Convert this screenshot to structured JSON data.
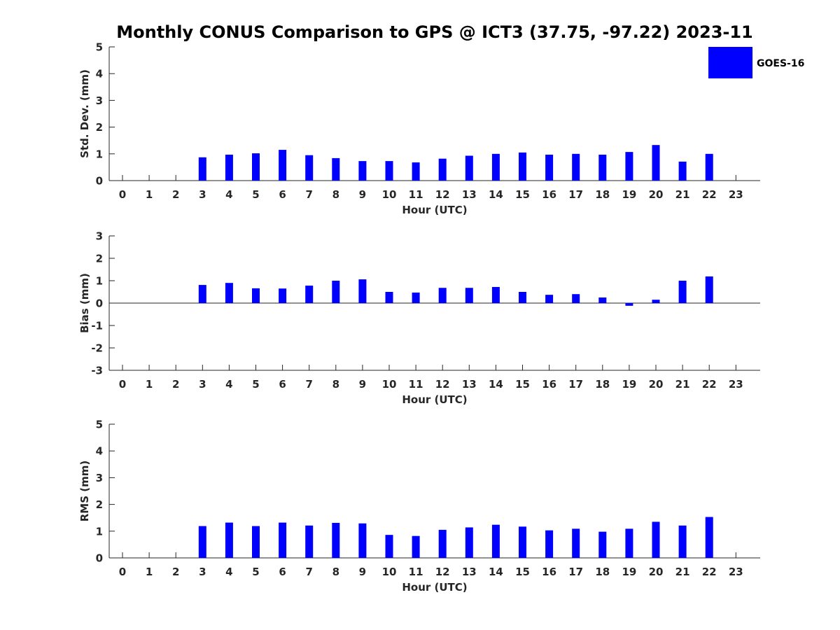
{
  "title": "Monthly CONUS Comparison to GPS @ ICT3 (37.75, -97.22) 2023-11",
  "legend": {
    "label": "GOES-16",
    "color": "#0000ff"
  },
  "chart_data": [
    {
      "type": "bar",
      "ylabel": "Std. Dev. (mm)",
      "xlabel": "Hour (UTC)",
      "ylim": [
        0,
        5
      ],
      "yticks": [
        0,
        1,
        2,
        3,
        4,
        5
      ],
      "categories": [
        "0",
        "1",
        "2",
        "3",
        "4",
        "5",
        "6",
        "7",
        "8",
        "9",
        "10",
        "11",
        "12",
        "13",
        "14",
        "15",
        "16",
        "17",
        "18",
        "19",
        "20",
        "21",
        "22",
        "23"
      ],
      "series": [
        {
          "name": "GOES-16",
          "color": "#0000ff",
          "values": [
            null,
            null,
            null,
            0.87,
            0.97,
            1.02,
            1.15,
            0.95,
            0.84,
            0.73,
            0.73,
            0.68,
            0.82,
            0.93,
            1.0,
            1.05,
            0.97,
            1.0,
            0.97,
            1.07,
            1.33,
            0.71,
            1.0,
            null
          ]
        }
      ],
      "legend": "top-right"
    },
    {
      "type": "bar",
      "ylabel": "Bias (mm)",
      "xlabel": "Hour (UTC)",
      "ylim": [
        -3,
        3
      ],
      "yticks": [
        -3,
        -2,
        -1,
        0,
        1,
        2,
        3
      ],
      "categories": [
        "0",
        "1",
        "2",
        "3",
        "4",
        "5",
        "6",
        "7",
        "8",
        "9",
        "10",
        "11",
        "12",
        "13",
        "14",
        "15",
        "16",
        "17",
        "18",
        "19",
        "20",
        "21",
        "22",
        "23"
      ],
      "series": [
        {
          "name": "GOES-16",
          "color": "#0000ff",
          "values": [
            null,
            null,
            null,
            0.81,
            0.9,
            0.66,
            0.65,
            0.78,
            1.0,
            1.06,
            0.5,
            0.47,
            0.68,
            0.68,
            0.72,
            0.5,
            0.37,
            0.4,
            0.25,
            -0.12,
            0.15,
            1.0,
            1.19,
            null
          ]
        }
      ],
      "zero_line": true
    },
    {
      "type": "bar",
      "ylabel": "RMS (mm)",
      "xlabel": "Hour (UTC)",
      "ylim": [
        0,
        5
      ],
      "yticks": [
        0,
        1,
        2,
        3,
        4,
        5
      ],
      "categories": [
        "0",
        "1",
        "2",
        "3",
        "4",
        "5",
        "6",
        "7",
        "8",
        "9",
        "10",
        "11",
        "12",
        "13",
        "14",
        "15",
        "16",
        "17",
        "18",
        "19",
        "20",
        "21",
        "22",
        "23"
      ],
      "series": [
        {
          "name": "GOES-16",
          "color": "#0000ff",
          "values": [
            null,
            null,
            null,
            1.19,
            1.32,
            1.19,
            1.32,
            1.21,
            1.31,
            1.29,
            0.86,
            0.82,
            1.05,
            1.14,
            1.24,
            1.17,
            1.03,
            1.09,
            0.98,
            1.09,
            1.35,
            1.21,
            1.53,
            null
          ]
        }
      ]
    }
  ]
}
